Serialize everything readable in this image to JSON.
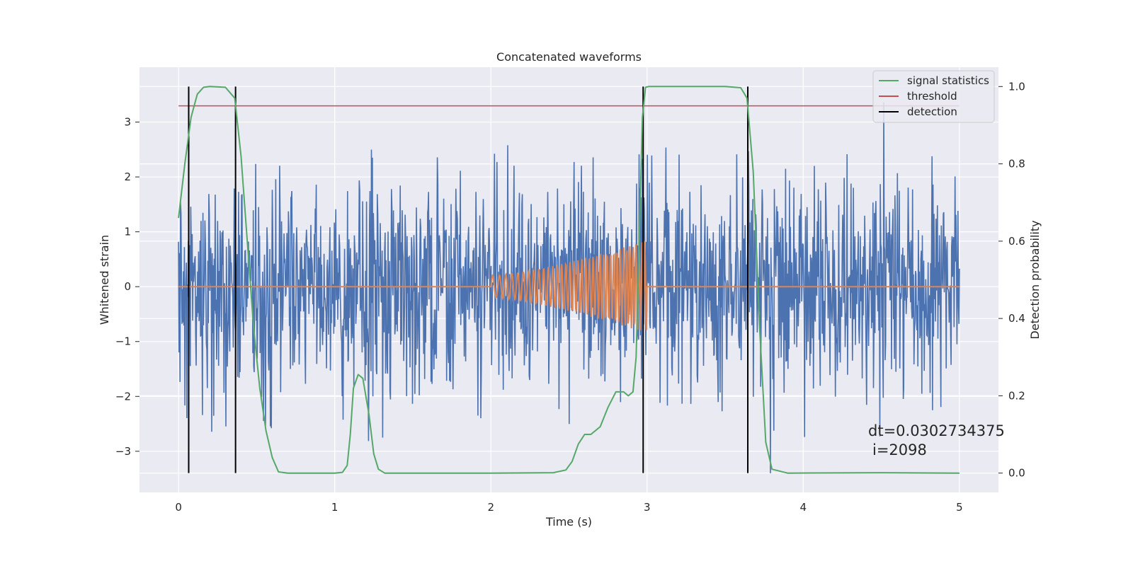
{
  "chart_data": {
    "type": "line",
    "title": "Concatenated waveforms",
    "xlabel": "Time (s)",
    "ylabel": "Whitened strain",
    "ylabel_right": "Detection probability",
    "xlim": [
      -0.25,
      5.25
    ],
    "ylim": [
      -3.75,
      4.0
    ],
    "ylim_right": [
      -0.05,
      1.05
    ],
    "x_ticks": [
      0,
      1,
      2,
      3,
      4,
      5
    ],
    "y_ticks": [
      -3,
      -2,
      -1,
      0,
      1,
      2,
      3
    ],
    "y_ticks_right": [
      0.0,
      0.2,
      0.4,
      0.6,
      0.8,
      1.0
    ],
    "x_tick_labels": [
      "0",
      "1",
      "2",
      "3",
      "4",
      "5"
    ],
    "y_tick_labels": [
      "−3",
      "−2",
      "−1",
      "0",
      "1",
      "2",
      "3"
    ],
    "y_tick_labels_right": [
      "0.0",
      "0.2",
      "0.4",
      "0.6",
      "0.8",
      "1.0"
    ],
    "grid": true,
    "legend_position": "top-right",
    "colors": {
      "noise": "#4c72b0",
      "injection": "#dd8452",
      "statistic": "#55a868",
      "threshold": "#c44e52",
      "detection": "#000000",
      "background": "#eaeaf2",
      "grid": "#ffffff"
    },
    "series": [
      {
        "name": "signal statistics",
        "axis": "right",
        "x": [
          0.0,
          0.04,
          0.08,
          0.12,
          0.16,
          0.2,
          0.3,
          0.36,
          0.4,
          0.44,
          0.48,
          0.52,
          0.56,
          0.6,
          0.64,
          0.7,
          1.0,
          1.05,
          1.08,
          1.1,
          1.12,
          1.15,
          1.18,
          1.22,
          1.25,
          1.28,
          1.32,
          1.5,
          2.0,
          2.4,
          2.48,
          2.52,
          2.56,
          2.6,
          2.64,
          2.7,
          2.75,
          2.8,
          2.85,
          2.88,
          2.91,
          2.93,
          2.95,
          2.97,
          2.99,
          3.01,
          3.1,
          3.5,
          3.6,
          3.64,
          3.68,
          3.72,
          3.76,
          3.8,
          3.9,
          4.5,
          5.0
        ],
        "y": [
          0.66,
          0.8,
          0.92,
          0.98,
          0.998,
          1.0,
          0.998,
          0.97,
          0.82,
          0.6,
          0.38,
          0.22,
          0.11,
          0.04,
          0.003,
          0.0,
          0.0,
          0.002,
          0.02,
          0.1,
          0.22,
          0.255,
          0.245,
          0.15,
          0.05,
          0.01,
          0.0,
          0.0,
          0.0,
          0.001,
          0.008,
          0.03,
          0.075,
          0.1,
          0.1,
          0.12,
          0.17,
          0.21,
          0.21,
          0.2,
          0.21,
          0.3,
          0.6,
          0.92,
          0.998,
          1.0,
          1.0,
          1.0,
          0.997,
          0.97,
          0.78,
          0.38,
          0.08,
          0.01,
          0.0,
          0.001,
          0.0
        ]
      },
      {
        "name": "threshold",
        "axis": "right",
        "x": [
          0.0,
          5.0
        ],
        "y": [
          0.95,
          0.95
        ]
      },
      {
        "name": "detection",
        "axis": "right",
        "type": "vlines",
        "x": [
          0.065,
          0.365,
          2.975,
          3.645
        ],
        "y_range": [
          0.0,
          1.0
        ]
      },
      {
        "name": "",
        "axis": "left",
        "kind": "noise",
        "x_range": [
          0.0,
          5.0
        ],
        "sample_count": 1600,
        "std": 0.95,
        "min": -3.4,
        "max": 3.65
      },
      {
        "name": "",
        "axis": "left",
        "kind": "injection-chirp",
        "x_range": [
          0.0,
          5.0
        ],
        "chirp_start": 2.0,
        "chirp_end": 3.0,
        "amp_start": 0.2,
        "amp_end": 0.85
      }
    ],
    "annotations": [
      "dt=0.0302734375",
      "i=2098"
    ]
  }
}
